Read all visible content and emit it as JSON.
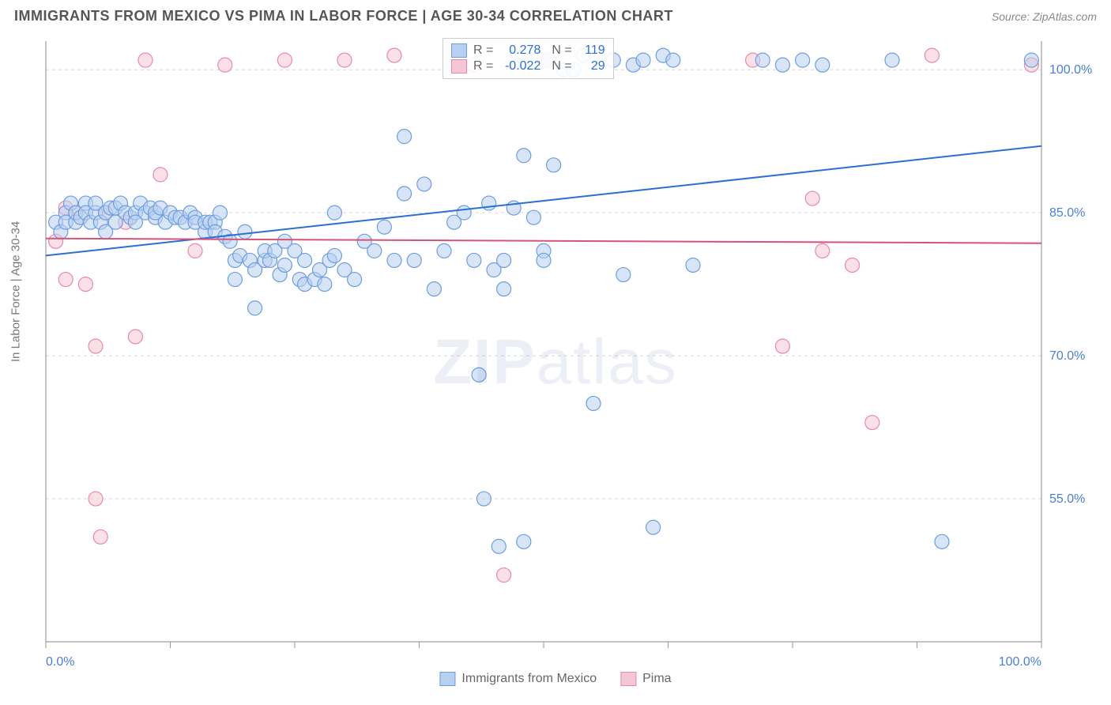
{
  "title": "IMMIGRANTS FROM MEXICO VS PIMA IN LABOR FORCE | AGE 30-34 CORRELATION CHART",
  "source": "Source: ZipAtlas.com",
  "watermark": "ZIPatlas",
  "chart": {
    "type": "scatter",
    "background_color": "#ffffff",
    "plot_border_color": "#888888",
    "grid_color": "#d8d8d8",
    "grid_dash": "4,4",
    "tick_color": "#999999",
    "y_axis_label": "In Labor Force | Age 30-34",
    "y_axis_label_color": "#777777",
    "y_axis_label_fontsize": 15,
    "x_axis": {
      "min": 0,
      "max": 100,
      "tick_positions": [
        0,
        12.5,
        25,
        37.5,
        50,
        62.5,
        75,
        87.5,
        100
      ],
      "tick_labels_shown": [
        "0.0%",
        "",
        "",
        "",
        "",
        "",
        "",
        "",
        "100.0%"
      ],
      "label_color": "#4a7fd6",
      "label_fontsize": 16
    },
    "y_axis": {
      "min": 40,
      "max": 103,
      "gridlines": [
        55,
        70,
        85,
        100
      ],
      "tick_labels": [
        "55.0%",
        "70.0%",
        "85.0%",
        "100.0%"
      ],
      "label_color": "#4a7fd6",
      "label_fontsize": 16
    },
    "series": [
      {
        "name": "Immigrants from Mexico",
        "color_fill": "#b8d0f0",
        "color_stroke": "#6d9de0",
        "marker_radius": 9,
        "fill_opacity": 0.55,
        "regression": {
          "slope_start": 80.5,
          "slope_end": 92,
          "color": "#2b6fd6",
          "width": 2
        },
        "R": "0.278",
        "N": "119",
        "points": [
          [
            1,
            84
          ],
          [
            1.5,
            83
          ],
          [
            2,
            85
          ],
          [
            2,
            84
          ],
          [
            2.5,
            86
          ],
          [
            3,
            84
          ],
          [
            3,
            85
          ],
          [
            3.5,
            84.5
          ],
          [
            4,
            86
          ],
          [
            4,
            85
          ],
          [
            4.5,
            84
          ],
          [
            5,
            85
          ],
          [
            5,
            86
          ],
          [
            5.5,
            84
          ],
          [
            6,
            85
          ],
          [
            6,
            83
          ],
          [
            6.5,
            85.5
          ],
          [
            7,
            85.5
          ],
          [
            7,
            84
          ],
          [
            7.5,
            86
          ],
          [
            8,
            85
          ],
          [
            8.5,
            84.5
          ],
          [
            9,
            85
          ],
          [
            9,
            84
          ],
          [
            9.5,
            86
          ],
          [
            10,
            85
          ],
          [
            10.5,
            85.5
          ],
          [
            11,
            84.5
          ],
          [
            11,
            85
          ],
          [
            11.5,
            85.5
          ],
          [
            12,
            84
          ],
          [
            12.5,
            85
          ],
          [
            13,
            84.5
          ],
          [
            13.5,
            84.5
          ],
          [
            14,
            84
          ],
          [
            14.5,
            85
          ],
          [
            15,
            84.5
          ],
          [
            15,
            84
          ],
          [
            16,
            83
          ],
          [
            16,
            84
          ],
          [
            16.5,
            84
          ],
          [
            17,
            84
          ],
          [
            17,
            83
          ],
          [
            17.5,
            85
          ],
          [
            18,
            82.5
          ],
          [
            18.5,
            82
          ],
          [
            19,
            78
          ],
          [
            19,
            80
          ],
          [
            19.5,
            80.5
          ],
          [
            20,
            83
          ],
          [
            20.5,
            80
          ],
          [
            21,
            75
          ],
          [
            21,
            79
          ],
          [
            22,
            80
          ],
          [
            22,
            81
          ],
          [
            22.5,
            80
          ],
          [
            23,
            81
          ],
          [
            23.5,
            78.5
          ],
          [
            24,
            82
          ],
          [
            24,
            79.5
          ],
          [
            25,
            81
          ],
          [
            25.5,
            78
          ],
          [
            26,
            77.5
          ],
          [
            26,
            80
          ],
          [
            27,
            78
          ],
          [
            27.5,
            79
          ],
          [
            28,
            77.5
          ],
          [
            28.5,
            80
          ],
          [
            29,
            80.5
          ],
          [
            29,
            85
          ],
          [
            30,
            79
          ],
          [
            31,
            78
          ],
          [
            32,
            82
          ],
          [
            33,
            81
          ],
          [
            34,
            83.5
          ],
          [
            35,
            80
          ],
          [
            36,
            87
          ],
          [
            36,
            93
          ],
          [
            37,
            80
          ],
          [
            38,
            88
          ],
          [
            39,
            77
          ],
          [
            40,
            81
          ],
          [
            41,
            84
          ],
          [
            42,
            85
          ],
          [
            43,
            80
          ],
          [
            43.5,
            68
          ],
          [
            44,
            55
          ],
          [
            44.5,
            86
          ],
          [
            45,
            79
          ],
          [
            45.5,
            50
          ],
          [
            46,
            77
          ],
          [
            46,
            80
          ],
          [
            47,
            85.5
          ],
          [
            48,
            50.5
          ],
          [
            48,
            91
          ],
          [
            49,
            84.5
          ],
          [
            50,
            81
          ],
          [
            50,
            80
          ],
          [
            50.5,
            101
          ],
          [
            51,
            90
          ],
          [
            52,
            100
          ],
          [
            53,
            100
          ],
          [
            54,
            101.5
          ],
          [
            55,
            65
          ],
          [
            57,
            101
          ],
          [
            58,
            78.5
          ],
          [
            59,
            100.5
          ],
          [
            60,
            101
          ],
          [
            61,
            52
          ],
          [
            62,
            101.5
          ],
          [
            63,
            101
          ],
          [
            65,
            79.5
          ],
          [
            72,
            101
          ],
          [
            74,
            100.5
          ],
          [
            76,
            101
          ],
          [
            78,
            100.5
          ],
          [
            85,
            101
          ],
          [
            90,
            50.5
          ],
          [
            99,
            101
          ]
        ]
      },
      {
        "name": "Pima",
        "color_fill": "#f5c6d3",
        "color_stroke": "#e989a8",
        "marker_radius": 9,
        "fill_opacity": 0.55,
        "regression": {
          "slope_start": 82.3,
          "slope_end": 81.8,
          "color": "#d6537a",
          "width": 2
        },
        "R": "-0.022",
        "N": "29",
        "points": [
          [
            1,
            82
          ],
          [
            2,
            85.5
          ],
          [
            2,
            78
          ],
          [
            3,
            85
          ],
          [
            4,
            77.5
          ],
          [
            5,
            55
          ],
          [
            5,
            71
          ],
          [
            5.5,
            51
          ],
          [
            6,
            85
          ],
          [
            8,
            84
          ],
          [
            9,
            72
          ],
          [
            10,
            101
          ],
          [
            11.5,
            89
          ],
          [
            15,
            81
          ],
          [
            18,
            100.5
          ],
          [
            24,
            101
          ],
          [
            30,
            101
          ],
          [
            35,
            101.5
          ],
          [
            43,
            100.5
          ],
          [
            46,
            47
          ],
          [
            50,
            101
          ],
          [
            71,
            101
          ],
          [
            74,
            71
          ],
          [
            77,
            86.5
          ],
          [
            78,
            81
          ],
          [
            81,
            79.5
          ],
          [
            83,
            63
          ],
          [
            89,
            101.5
          ],
          [
            99,
            100.5
          ]
        ]
      }
    ],
    "stats_box": {
      "border_color": "#cccccc",
      "text_color_label": "#666666",
      "text_color_value": "#2b6fd6",
      "fontsize": 16
    },
    "bottom_legend": {
      "text_color": "#666666",
      "fontsize": 16
    }
  }
}
